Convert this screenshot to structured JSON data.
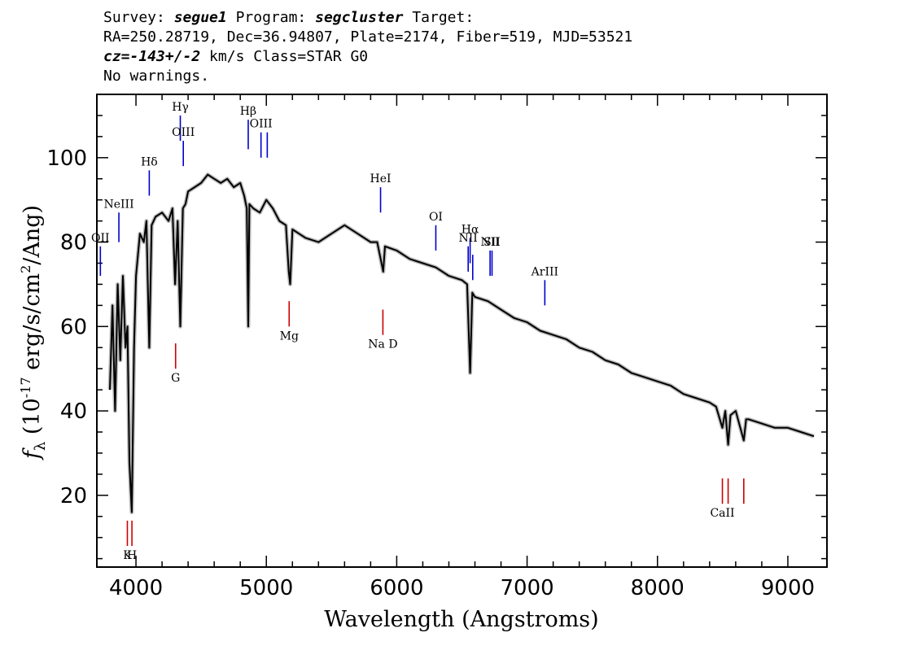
{
  "header": {
    "line1": {
      "survey_label": "Survey: ",
      "survey": "segue1",
      "program_label": " Program: ",
      "program": "segcluster",
      "target_label": " Target:"
    },
    "line2": "RA=250.28719, Dec=36.94807, Plate=2174, Fiber=519, MJD=53521",
    "line3": {
      "cz": "cz=-143+/-2",
      "rest": " km/s Class=STAR G0"
    },
    "line4": "No warnings."
  },
  "chart_data": {
    "type": "line",
    "xlabel": "Wavelength (Angstroms)",
    "ylabel": "f_λ (10^-17 erg/s/cm^2/Ang)",
    "xlim": [
      3700,
      9300
    ],
    "ylim": [
      3,
      115
    ],
    "xticks": [
      4000,
      5000,
      6000,
      7000,
      8000,
      9000
    ],
    "yticks": [
      20,
      40,
      60,
      80,
      100
    ],
    "grid": false,
    "series": [
      {
        "color": "#000000",
        "x": [
          3800,
          3820,
          3840,
          3860,
          3880,
          3900,
          3920,
          3935,
          3950,
          3968,
          3985,
          4000,
          4030,
          4060,
          4080,
          4102,
          4120,
          4150,
          4200,
          4250,
          4280,
          4300,
          4320,
          4340,
          4360,
          4380,
          4400,
          4450,
          4500,
          4550,
          4600,
          4650,
          4700,
          4750,
          4800,
          4830,
          4850,
          4861,
          4870,
          4900,
          4950,
          5000,
          5050,
          5100,
          5150,
          5172,
          5183,
          5200,
          5250,
          5300,
          5400,
          5500,
          5600,
          5700,
          5800,
          5850,
          5890,
          5896,
          5910,
          6000,
          6100,
          6200,
          6300,
          6400,
          6500,
          6540,
          6563,
          6580,
          6600,
          6700,
          6800,
          6900,
          7000,
          7100,
          7200,
          7300,
          7400,
          7500,
          7600,
          7700,
          7800,
          7900,
          8000,
          8100,
          8200,
          8300,
          8400,
          8450,
          8498,
          8520,
          8542,
          8560,
          8600,
          8662,
          8680,
          8700,
          8800,
          8900,
          9000,
          9100,
          9200
        ],
        "y": [
          45,
          65,
          40,
          70,
          52,
          72,
          55,
          60,
          28,
          16,
          55,
          72,
          82,
          80,
          85,
          55,
          84,
          86,
          87,
          85,
          88,
          70,
          85,
          60,
          88,
          89,
          92,
          93,
          94,
          96,
          95,
          94,
          95,
          93,
          94,
          91,
          88,
          60,
          89,
          88,
          87,
          90,
          88,
          85,
          84,
          73,
          70,
          83,
          82,
          81,
          80,
          82,
          84,
          82,
          80,
          80,
          74,
          73,
          79,
          78,
          76,
          75,
          74,
          72,
          71,
          70,
          49,
          68,
          67,
          66,
          64,
          62,
          61,
          59,
          58,
          57,
          55,
          54,
          52,
          51,
          49,
          48,
          47,
          46,
          44,
          43,
          42,
          41,
          36,
          40,
          32,
          39,
          40,
          33,
          38,
          38,
          37,
          36,
          36,
          35,
          34
        ]
      }
    ],
    "emission_lines": [
      {
        "label": "OII",
        "x": 3727,
        "y_top": 79,
        "y_bottom": 72,
        "color": "#0000cc"
      },
      {
        "label": "NeIII",
        "x": 3869,
        "y_top": 87,
        "y_bottom": 80,
        "color": "#0000cc"
      },
      {
        "label": "Hδ",
        "x": 4102,
        "y_top": 97,
        "y_bottom": 91,
        "color": "#0000cc"
      },
      {
        "label": "Hγ",
        "x": 4340,
        "y_top": 110,
        "y_bottom": 104,
        "color": "#0000cc"
      },
      {
        "label": "OIII",
        "x": 4363,
        "y_top": 104,
        "y_bottom": 98,
        "color": "#0000cc"
      },
      {
        "label": "Hβ",
        "x": 4861,
        "y_top": 109,
        "y_bottom": 102,
        "color": "#0000cc"
      },
      {
        "label": "OIII",
        "x": 4959,
        "y_top": 106,
        "y_bottom": 100,
        "color": "#0000cc"
      },
      {
        "label": "",
        "x": 5007,
        "y_top": 106,
        "y_bottom": 100,
        "color": "#0000cc"
      },
      {
        "label": "HeI",
        "x": 5876,
        "y_top": 93,
        "y_bottom": 87,
        "color": "#0000cc"
      },
      {
        "label": "OI",
        "x": 6300,
        "y_top": 84,
        "y_bottom": 78,
        "color": "#0000cc"
      },
      {
        "label": "NII",
        "x": 6548,
        "y_top": 79,
        "y_bottom": 73,
        "color": "#0000cc"
      },
      {
        "label": "Hα",
        "x": 6563,
        "y_top": 81,
        "y_bottom": 75,
        "color": "#0000cc"
      },
      {
        "label": "",
        "x": 6583,
        "y_top": 77,
        "y_bottom": 71,
        "color": "#0000cc"
      },
      {
        "label": "NII",
        "x": 6716,
        "y_top": 78,
        "y_bottom": 72,
        "color": "#0000cc"
      },
      {
        "label": "SII",
        "x": 6731,
        "y_top": 78,
        "y_bottom": 72,
        "color": "#0000cc"
      },
      {
        "label": "ArIII",
        "x": 7136,
        "y_top": 71,
        "y_bottom": 65,
        "color": "#0000cc"
      }
    ],
    "absorption_lines": [
      {
        "label": "K",
        "x": 3934,
        "y_top": 14,
        "y_bottom": 8,
        "color": "#cc0000"
      },
      {
        "label": "H",
        "x": 3969,
        "y_top": 14,
        "y_bottom": 8,
        "color": "#cc0000"
      },
      {
        "label": "G",
        "x": 4304,
        "y_top": 56,
        "y_bottom": 50,
        "color": "#cc0000"
      },
      {
        "label": "Mg",
        "x": 5175,
        "y_top": 66,
        "y_bottom": 60,
        "color": "#cc0000"
      },
      {
        "label": "Na D",
        "x": 5894,
        "y_top": 64,
        "y_bottom": 58,
        "color": "#cc0000"
      },
      {
        "label": "CaII",
        "x": 8498,
        "y_top": 24,
        "y_bottom": 18,
        "color": "#cc0000"
      },
      {
        "label": "",
        "x": 8542,
        "y_top": 24,
        "y_bottom": 18,
        "color": "#cc0000"
      },
      {
        "label": "",
        "x": 8662,
        "y_top": 24,
        "y_bottom": 18,
        "color": "#cc0000"
      }
    ]
  }
}
